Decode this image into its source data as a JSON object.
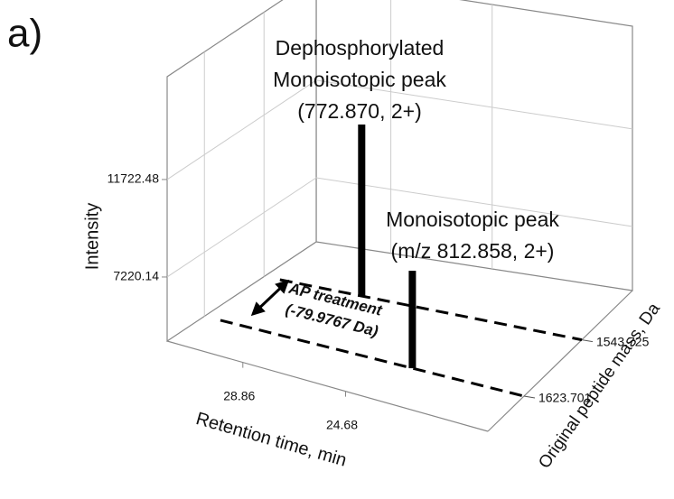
{
  "chart_data": {
    "type": "bar3d",
    "panel_label": "a)",
    "xlabel": "Retention time, min",
    "ylabel": "Original peptide mass, Da",
    "zlabel": "Intensity",
    "xlim": [
      31.94,
      18.89
    ],
    "xticks": [
      28.86,
      24.68
    ],
    "ylim": [
      1673.7,
      1473.7
    ],
    "yticks": [
      1543.725,
      1623.701
    ],
    "zlim": [
      4260,
      16470
    ],
    "zticks": [
      7220.14,
      11722.48
    ],
    "x": [
      27.93,
      23.45
    ],
    "y": [
      1543.725,
      1623.701
    ],
    "values": [
      12180,
      8760
    ],
    "color": "#000000",
    "grid": true,
    "peak_labels": [
      [
        "Dephosphorylated",
        "Monoisotopic peak",
        "(772.870, 2+)"
      ],
      [
        "Monoisotopic peak",
        "(m/z 812.858, 2+)"
      ]
    ],
    "shift_label": [
      "AP treatment",
      "(-79.9767 Da)"
    ]
  }
}
